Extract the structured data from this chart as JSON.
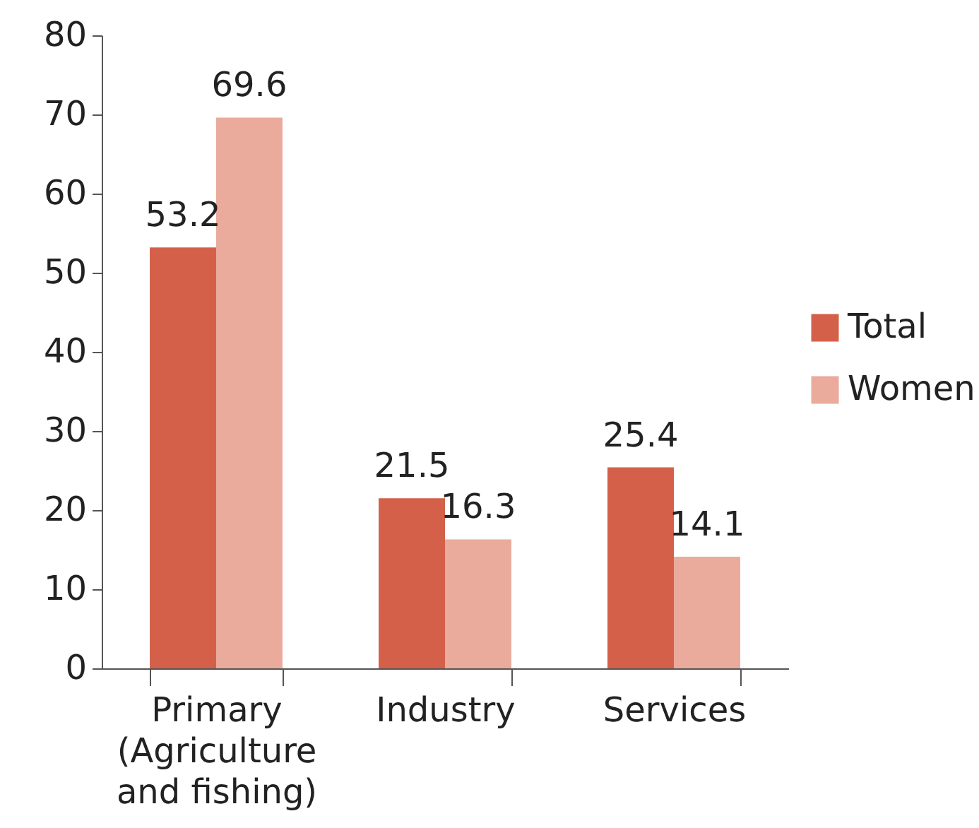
{
  "chart_data": {
    "type": "bar",
    "categories": [
      "Primary (Agriculture and fishing)",
      "Industry",
      "Services"
    ],
    "series": [
      {
        "name": "Total",
        "color": "#d4604a",
        "values": [
          53.2,
          21.5,
          25.4
        ]
      },
      {
        "name": "Women",
        "color": "#eaaa9c",
        "values": [
          69.6,
          16.3,
          14.1
        ]
      }
    ],
    "ylim": [
      0,
      80
    ],
    "yticks": [
      0,
      10,
      20,
      30,
      40,
      50,
      60,
      70,
      80
    ],
    "grid": false,
    "legend": "right",
    "data_labels": true
  }
}
